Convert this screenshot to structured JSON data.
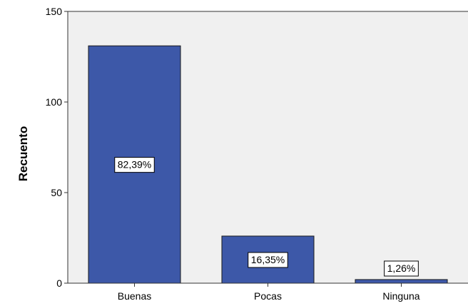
{
  "chart_data": {
    "type": "bar",
    "title": "",
    "xlabel": "",
    "ylabel": "Recuento",
    "categories": [
      "Buenas",
      "Pocas",
      "Ninguna"
    ],
    "values": [
      131,
      26,
      2
    ],
    "data_labels": [
      "82,39%",
      "16,35%",
      "1,26%"
    ],
    "ylim": [
      0,
      150
    ],
    "yticks": [
      0,
      50,
      100,
      150
    ],
    "grid": false,
    "legend": "none",
    "colors": {
      "plot_background": "#f0f0f0",
      "bar_fill": "#3d58a8",
      "bar_stroke": "#1a1a1a",
      "axis": "#333333"
    }
  }
}
